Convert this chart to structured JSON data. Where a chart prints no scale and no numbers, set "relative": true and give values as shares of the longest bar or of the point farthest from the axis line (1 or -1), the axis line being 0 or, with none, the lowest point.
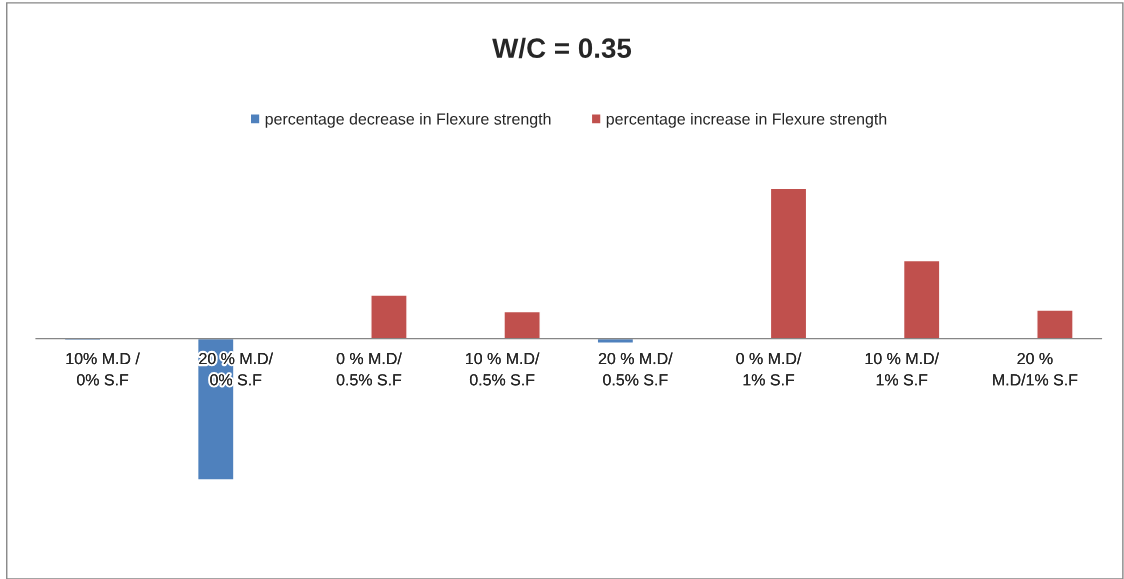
{
  "chart_data": {
    "type": "bar",
    "title": "W/C = 0.35",
    "relative": true,
    "categories": [
      "10% M.D /\n0% S.F",
      "20 % M.D/\n0% S.F",
      "0 % M.D/\n0.5% S.F",
      "10 % M.D/\n0.5% S.F",
      "20 % M.D/\n0.5% S.F",
      "0 % M.D/\n1% S.F",
      "10 % M.D/\n1% S.F",
      "20 %\nM.D/1% S.F"
    ],
    "series": [
      {
        "name": "percentage decrease in Flexure strength",
        "color": "#4f81bd",
        "values": [
          -0.013,
          -0.94,
          null,
          null,
          -0.03,
          null,
          null,
          null
        ]
      },
      {
        "name": "percentage increase in Flexure strength",
        "color": "#c0504d",
        "values": [
          null,
          null,
          0.29,
          0.18,
          null,
          1,
          0.52,
          0.19
        ]
      }
    ],
    "legend": "top"
  }
}
